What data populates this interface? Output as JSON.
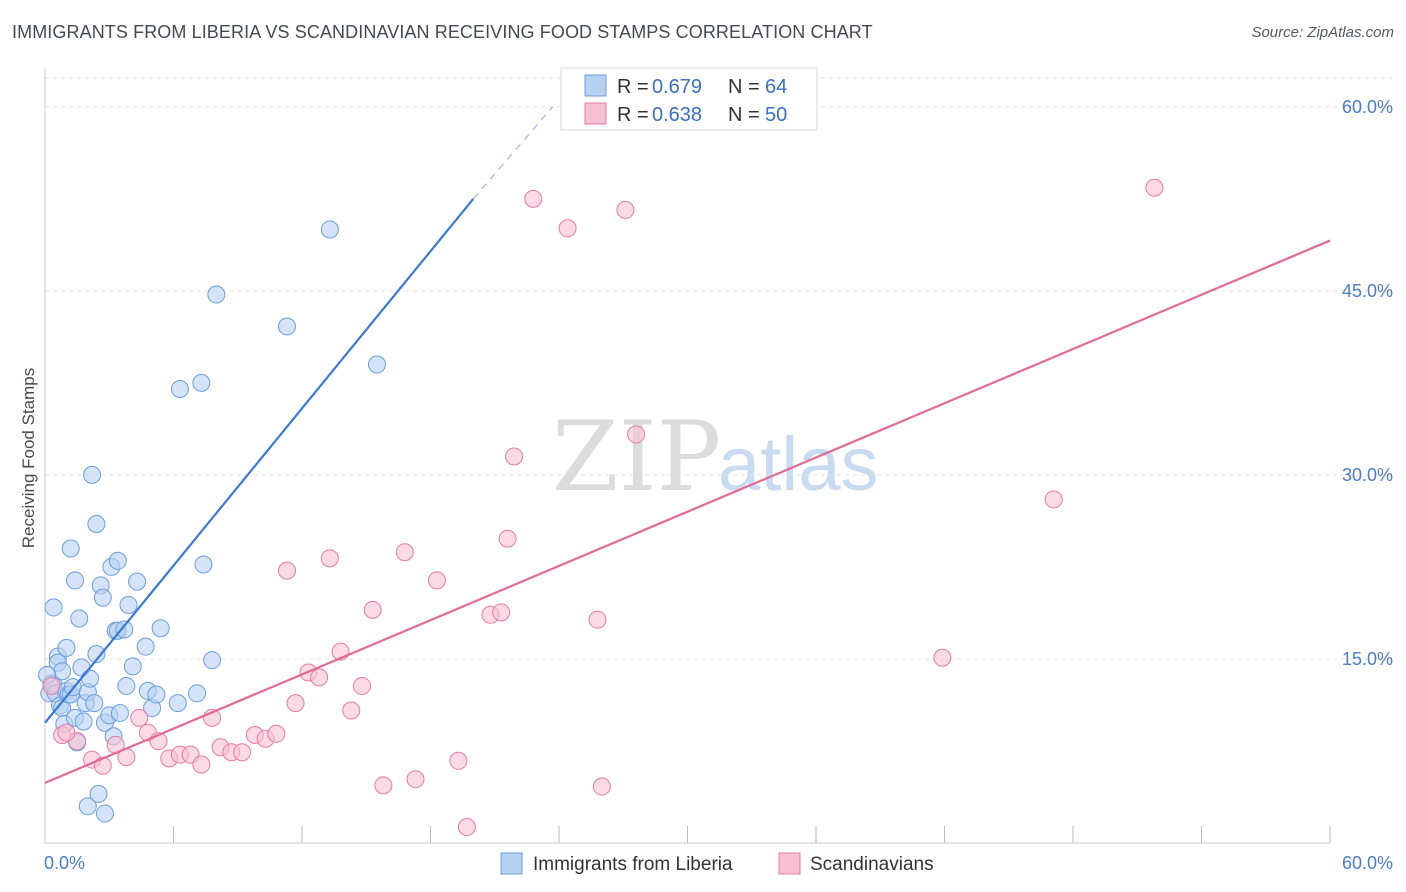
{
  "title": "IMMIGRANTS FROM LIBERIA VS SCANDINAVIAN RECEIVING FOOD STAMPS CORRELATION CHART",
  "source": "Source: ZipAtlas.com",
  "watermark": {
    "zip": "ZIP",
    "atlas": "atlas"
  },
  "legend_top": [
    {
      "r_label": "R = ",
      "r_value": "0.679",
      "n_label": "N = ",
      "n_value": "64"
    },
    {
      "r_label": "R = ",
      "r_value": "0.638",
      "n_label": "N = ",
      "n_value": "50"
    }
  ],
  "chart_data": {
    "type": "scatter",
    "title": "IMMIGRANTS FROM LIBERIA VS SCANDINAVIAN RECEIVING FOOD STAMPS CORRELATION CHART",
    "xlabel": "",
    "ylabel": "Receiving Food Stamps",
    "xlim": [
      0,
      60
    ],
    "ylim": [
      0,
      63
    ],
    "x_tick_labels": [
      "0.0%",
      "60.0%"
    ],
    "y_ticks": [
      15,
      30,
      45,
      60
    ],
    "y_tick_labels": [
      "15.0%",
      "30.0%",
      "45.0%",
      "60.0%"
    ],
    "grid": true,
    "legend_position": "top-center",
    "series": [
      {
        "name": "Immigrants from Liberia",
        "color": "#6a9fdc",
        "fill": "#b7d1f2",
        "r": 0.679,
        "n": 64,
        "trendline": {
          "x": [
            0,
            20
          ],
          "y": [
            9.8,
            52.5
          ],
          "dash_extension_to": [
            23.7,
            60
          ]
        },
        "points": [
          [
            0.2,
            12.2
          ],
          [
            0.3,
            13.0
          ],
          [
            0.4,
            12.9
          ],
          [
            0.4,
            19.2
          ],
          [
            0.5,
            12.2
          ],
          [
            0.6,
            15.2
          ],
          [
            0.6,
            14.7
          ],
          [
            0.7,
            11.2
          ],
          [
            0.8,
            11.0
          ],
          [
            0.8,
            14.0
          ],
          [
            0.9,
            9.7
          ],
          [
            1.0,
            12.4
          ],
          [
            1.1,
            12.1
          ],
          [
            1.2,
            24.0
          ],
          [
            1.2,
            12.1
          ],
          [
            1.3,
            12.7
          ],
          [
            1.4,
            21.4
          ],
          [
            1.4,
            10.2
          ],
          [
            1.5,
            8.2
          ],
          [
            1.6,
            18.3
          ],
          [
            1.7,
            14.3
          ],
          [
            1.8,
            9.9
          ],
          [
            1.9,
            11.4
          ],
          [
            2.0,
            3.0
          ],
          [
            2.0,
            12.3
          ],
          [
            2.1,
            13.4
          ],
          [
            2.2,
            30.0
          ],
          [
            2.3,
            11.4
          ],
          [
            2.4,
            26.0
          ],
          [
            2.4,
            15.4
          ],
          [
            2.5,
            4.0
          ],
          [
            2.6,
            21.0
          ],
          [
            2.7,
            20.0
          ],
          [
            2.8,
            9.8
          ],
          [
            2.8,
            2.4
          ],
          [
            3.0,
            10.4
          ],
          [
            3.1,
            22.5
          ],
          [
            3.2,
            8.7
          ],
          [
            3.3,
            17.3
          ],
          [
            3.4,
            17.3
          ],
          [
            3.4,
            23.0
          ],
          [
            3.5,
            10.6
          ],
          [
            3.7,
            17.4
          ],
          [
            3.8,
            12.8
          ],
          [
            3.9,
            19.4
          ],
          [
            4.1,
            14.4
          ],
          [
            4.3,
            21.3
          ],
          [
            4.7,
            16.0
          ],
          [
            4.8,
            12.4
          ],
          [
            5.0,
            11.0
          ],
          [
            5.2,
            12.1
          ],
          [
            5.4,
            17.5
          ],
          [
            6.2,
            11.4
          ],
          [
            6.3,
            37.0
          ],
          [
            7.1,
            12.2
          ],
          [
            7.3,
            37.5
          ],
          [
            7.4,
            22.7
          ],
          [
            7.8,
            14.9
          ],
          [
            8.0,
            44.7
          ],
          [
            11.3,
            42.1
          ],
          [
            13.3,
            50.0
          ],
          [
            15.5,
            39.0
          ],
          [
            0.1,
            13.7
          ],
          [
            1.0,
            15.9
          ]
        ]
      },
      {
        "name": "Scandinavians",
        "color": "#e87ba0",
        "fill": "#f6c1d2",
        "r": 0.638,
        "n": 50,
        "trendline": {
          "x": [
            0,
            60
          ],
          "y": [
            4.9,
            49.1
          ]
        },
        "points": [
          [
            0.3,
            12.8
          ],
          [
            0.8,
            8.8
          ],
          [
            1.5,
            8.3
          ],
          [
            2.2,
            6.8
          ],
          [
            2.7,
            6.3
          ],
          [
            3.3,
            8.0
          ],
          [
            3.8,
            7.0
          ],
          [
            4.4,
            10.2
          ],
          [
            4.8,
            9.0
          ],
          [
            5.3,
            8.3
          ],
          [
            5.8,
            6.9
          ],
          [
            6.3,
            7.2
          ],
          [
            6.8,
            7.2
          ],
          [
            7.3,
            6.4
          ],
          [
            7.8,
            10.2
          ],
          [
            8.2,
            7.8
          ],
          [
            8.7,
            7.4
          ],
          [
            9.2,
            7.4
          ],
          [
            9.8,
            8.8
          ],
          [
            10.3,
            8.5
          ],
          [
            10.8,
            8.9
          ],
          [
            11.3,
            22.2
          ],
          [
            11.7,
            11.4
          ],
          [
            12.3,
            13.9
          ],
          [
            12.8,
            13.5
          ],
          [
            13.3,
            23.2
          ],
          [
            13.8,
            15.6
          ],
          [
            14.3,
            10.8
          ],
          [
            14.8,
            12.8
          ],
          [
            15.3,
            19.0
          ],
          [
            15.8,
            4.7
          ],
          [
            16.8,
            23.7
          ],
          [
            17.3,
            5.2
          ],
          [
            18.3,
            21.4
          ],
          [
            19.3,
            6.7
          ],
          [
            19.7,
            1.3
          ],
          [
            20.8,
            18.6
          ],
          [
            21.3,
            18.8
          ],
          [
            21.6,
            24.8
          ],
          [
            21.9,
            31.5
          ],
          [
            22.8,
            52.5
          ],
          [
            24.4,
            50.1
          ],
          [
            25.8,
            18.2
          ],
          [
            26.0,
            4.6
          ],
          [
            27.1,
            51.6
          ],
          [
            27.6,
            33.3
          ],
          [
            41.9,
            15.1
          ],
          [
            47.1,
            28.0
          ],
          [
            51.8,
            53.4
          ],
          [
            1.0,
            9.0
          ]
        ]
      }
    ]
  }
}
